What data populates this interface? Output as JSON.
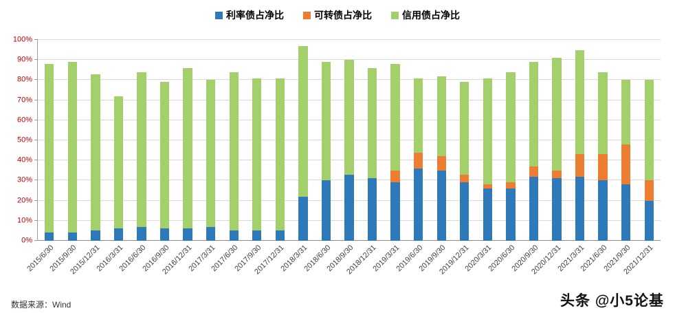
{
  "source_note": "数据来源：Wind",
  "watermark": "头条 @小5论基",
  "colors": {
    "rates_bond": "#2e79b9",
    "convertible_bond": "#ed7d31",
    "credit_bond": "#a3d06b",
    "y_axis_label": "#c00000",
    "gridline": "#d9d9d9"
  },
  "chart_data": {
    "type": "bar",
    "stacked": true,
    "grid": true,
    "legend_position": "top",
    "ylim": [
      0,
      100
    ],
    "ytick_step": 10,
    "ytick_format": "percent",
    "ytick_labels": [
      "0%",
      "10%",
      "20%",
      "30%",
      "40%",
      "50%",
      "60%",
      "70%",
      "80%",
      "90%",
      "100%"
    ],
    "categories": [
      "2015/6/30",
      "2015/9/30",
      "2015/12/31",
      "2016/3/31",
      "2016/6/30",
      "2016/9/30",
      "2016/12/31",
      "2017/3/31",
      "2017/6/30",
      "2017/9/30",
      "2017/12/31",
      "2018/3/31",
      "2018/6/30",
      "2018/9/30",
      "2018/12/31",
      "2019/3/31",
      "2019/6/30",
      "2019/9/30",
      "2019/12/31",
      "2020/3/31",
      "2020/6/30",
      "2020/9/30",
      "2020/12/31",
      "2021/3/31",
      "2021/6/30",
      "2021/9/30",
      "2021/12/31"
    ],
    "series": [
      {
        "name": "利率债占净比",
        "color": "#2e79b9",
        "values": [
          4,
          4,
          5,
          6,
          7,
          6,
          6,
          7,
          5,
          5,
          5,
          22,
          30,
          33,
          31,
          29,
          36,
          35,
          29,
          26,
          26,
          32,
          31,
          32,
          30,
          28,
          20
        ]
      },
      {
        "name": "可转债占净比",
        "color": "#ed7d31",
        "values": [
          0,
          0,
          0,
          0,
          0,
          0,
          0,
          0,
          0,
          0,
          0,
          0,
          0,
          0,
          0,
          6,
          8,
          7,
          4,
          2,
          3,
          5,
          4,
          11,
          13,
          20,
          10
        ]
      },
      {
        "name": "信用债占净比",
        "color": "#a3d06b",
        "values": [
          84,
          85,
          78,
          66,
          77,
          73,
          80,
          73,
          79,
          76,
          76,
          75,
          59,
          57,
          55,
          53,
          37,
          40,
          46,
          53,
          55,
          52,
          56,
          52,
          41,
          32,
          50
        ]
      }
    ]
  }
}
